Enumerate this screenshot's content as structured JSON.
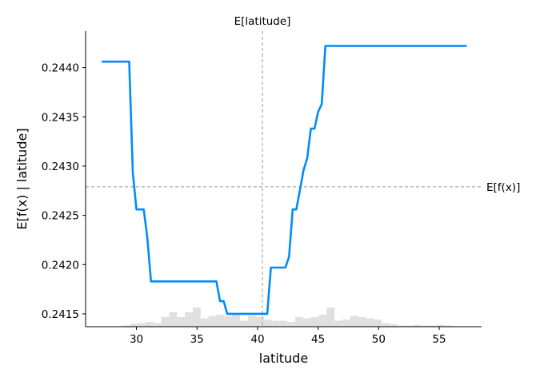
{
  "chart_data": {
    "type": "line",
    "xlabel": "latitude",
    "ylabel": "E[f(x) | latitude]",
    "xlim": [
      25.8,
      58.5
    ],
    "ylim": [
      0.24137,
      0.24437
    ],
    "x_ticks": [
      "30",
      "35",
      "40",
      "45",
      "50",
      "55"
    ],
    "x_tick_values": [
      30,
      35,
      40,
      45,
      50,
      55
    ],
    "y_ticks": [
      "0.2415",
      "0.2420",
      "0.2425",
      "0.2430",
      "0.2435",
      "0.2440"
    ],
    "y_tick_values": [
      0.2415,
      0.242,
      0.2425,
      0.243,
      0.2435,
      0.244
    ],
    "grid": false,
    "line_color": "#008bfb",
    "series": [
      {
        "x": [
          27.2,
          29.4,
          29.7,
          30.0,
          30.6,
          30.9,
          31.2,
          36.6,
          36.9,
          37.2,
          37.5,
          40.8,
          41.1,
          42.3,
          42.6,
          42.9,
          43.2,
          43.5,
          43.8,
          44.1,
          44.4,
          44.7,
          45.0,
          45.3,
          45.6,
          57.2
        ],
        "y": [
          0.24406,
          0.24406,
          0.24293,
          0.24256,
          0.24256,
          0.24227,
          0.24183,
          0.24183,
          0.24163,
          0.24163,
          0.2415,
          0.2415,
          0.24197,
          0.24197,
          0.24208,
          0.24256,
          0.24256,
          0.24276,
          0.24296,
          0.24308,
          0.24338,
          0.24338,
          0.24355,
          0.24363,
          0.24422,
          0.24422
        ]
      }
    ],
    "reference_lines": {
      "vertical": {
        "x": 40.4,
        "label": "E[latitude]",
        "color": "#999999"
      },
      "horizontal": {
        "y": 0.24279,
        "label": "E[f(x)]",
        "color": "#999999"
      }
    },
    "histogram": {
      "color": "#e0e0e0",
      "bin_width": 0.65,
      "bin_starts": [
        26.2,
        26.85,
        27.5,
        28.15,
        28.8,
        29.45,
        30.1,
        30.75,
        31.4,
        32.05,
        32.7,
        33.35,
        34.0,
        34.65,
        35.3,
        35.95,
        36.6,
        37.25,
        37.9,
        38.55,
        39.2,
        39.85,
        40.5,
        41.15,
        41.8,
        42.45,
        43.1,
        43.75,
        44.4,
        45.05,
        45.7,
        46.35,
        47.0,
        47.65,
        48.3,
        48.95,
        49.6,
        50.25,
        50.9,
        51.55,
        52.2,
        52.85,
        53.5,
        54.15,
        54.8,
        55.45,
        56.1,
        56.75
      ],
      "counts": [
        0.0,
        0.0,
        0.0,
        0.0,
        0.01,
        0.025,
        0.03,
        0.04,
        0.03,
        0.08,
        0.12,
        0.08,
        0.12,
        0.16,
        0.07,
        0.09,
        0.1,
        0.09,
        0.11,
        0.05,
        0.09,
        0.08,
        0.06,
        0.05,
        0.05,
        0.04,
        0.08,
        0.07,
        0.08,
        0.1,
        0.16,
        0.05,
        0.06,
        0.09,
        0.08,
        0.07,
        0.06,
        0.03,
        0.02,
        0.01,
        0.01,
        0.015,
        0.01,
        0.01,
        0.015,
        0.01,
        0.0,
        0.0
      ]
    }
  }
}
